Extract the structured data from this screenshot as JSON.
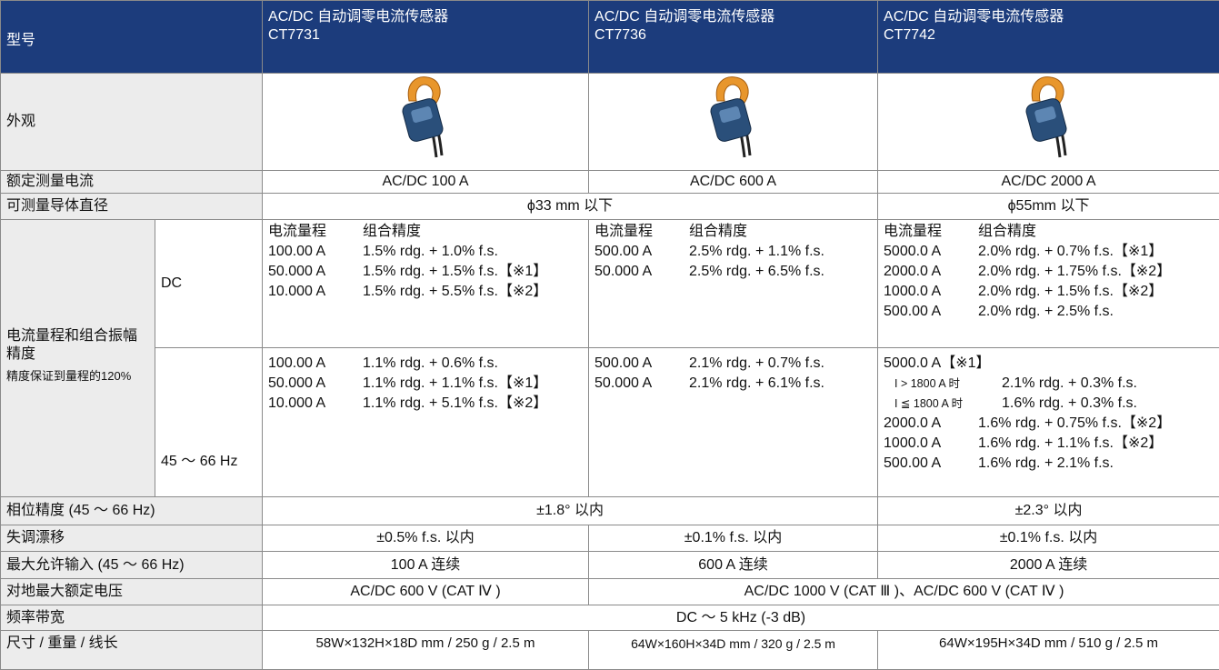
{
  "header": {
    "label": "型号",
    "models": [
      {
        "name": "AC/DC 自动调零电流传感器",
        "code": "CT7731"
      },
      {
        "name": "AC/DC 自动调零电流传感器",
        "code": "CT7736"
      },
      {
        "name": "AC/DC 自动调零电流传感器",
        "code": "CT7742"
      }
    ]
  },
  "appearance": {
    "label": "外观"
  },
  "rated": {
    "label": "额定测量电流",
    "cells": [
      "AC/DC 100 A",
      "AC/DC 600 A",
      "AC/DC 2000 A"
    ]
  },
  "diameter": {
    "label": "可测量导体直径",
    "cells": [
      "ϕ33 mm 以下",
      "ϕ55mm 以下"
    ]
  },
  "accuracy": {
    "label": "电流量程和组合振幅精度",
    "note": "精度保证到量程的120%",
    "heading": [
      "电流量程",
      "组合精度"
    ],
    "dc": {
      "label": "DC",
      "cells": [
        [
          [
            "100.00 A",
            "1.5% rdg. + 1.0% f.s."
          ],
          [
            "50.000 A",
            "1.5% rdg. + 1.5% f.s.【※1】"
          ],
          [
            "10.000 A",
            "1.5% rdg. + 5.5% f.s.【※2】"
          ]
        ],
        [
          [
            "500.00 A",
            "2.5% rdg. + 1.1% f.s."
          ],
          [
            "50.000 A",
            "2.5% rdg. + 6.5% f.s."
          ]
        ],
        [
          [
            "5000.0 A",
            "2.0% rdg. + 0.7% f.s.【※1】"
          ],
          [
            "2000.0 A",
            "2.0% rdg. + 1.75% f.s.【※2】"
          ],
          [
            "1000.0 A",
            "2.0% rdg. + 1.5% f.s.【※2】"
          ],
          [
            "500.00 A",
            "2.0% rdg. + 2.5% f.s."
          ]
        ]
      ]
    },
    "ac": {
      "label": "45 ～ 66 Hz",
      "cells": [
        [
          [
            "100.00 A",
            "1.1% rdg. + 0.6% f.s."
          ],
          [
            "50.000 A",
            "1.1% rdg. + 1.1% f.s.【※1】"
          ],
          [
            "10.000 A",
            "1.1% rdg. + 5.1% f.s.【※2】"
          ]
        ],
        [
          [
            "500.00 A",
            "2.1% rdg. + 0.7% f.s."
          ],
          [
            "50.000 A",
            "2.1% rdg. + 6.1% f.s."
          ]
        ],
        [
          [
            "5000.0 A【※1】"
          ],
          [
            "I > 1800 A 时",
            "2.1% rdg. + 0.3% f.s."
          ],
          [
            "I ≦ 1800 A 时",
            "1.6% rdg. + 0.3% f.s."
          ],
          [
            "2000.0 A",
            "1.6% rdg. + 0.75% f.s.【※2】"
          ],
          [
            "1000.0 A",
            "1.6% rdg. + 1.1% f.s.【※2】"
          ],
          [
            "500.00 A",
            "1.6% rdg. + 2.1% f.s."
          ]
        ]
      ]
    }
  },
  "phase": {
    "label": "相位精度 (45 ～ 66 Hz)",
    "cells": [
      "±1.8° 以内",
      "±2.3° 以内"
    ]
  },
  "offset": {
    "label": "失调漂移",
    "cells": [
      "±0.5% f.s. 以内",
      "±0.1% f.s. 以内",
      "±0.1% f.s. 以内"
    ]
  },
  "max_input": {
    "label": "最大允许输入 (45 ～ 66 Hz)",
    "cells": [
      "100 A 连续",
      "600 A 连续",
      "2000 A 连续"
    ]
  },
  "voltage": {
    "label": "对地最大额定电压",
    "cells": [
      "AC/DC 600 V (CAT Ⅳ )",
      "AC/DC 1000 V (CAT Ⅲ )、AC/DC 600 V (CAT Ⅳ )"
    ]
  },
  "bandwidth": {
    "label": "频率带宽",
    "cells": [
      "DC ～ 5 kHz (-3 dB)"
    ]
  },
  "size": {
    "label": "尺寸 / 重量 / 线长",
    "cells": [
      "58W×132H×18D mm / 250 g / 2.5 m",
      "64W×160H×34D mm / 320 g / 2.5 m",
      "64W×195H×34D mm / 510 g / 2.5 m"
    ]
  }
}
